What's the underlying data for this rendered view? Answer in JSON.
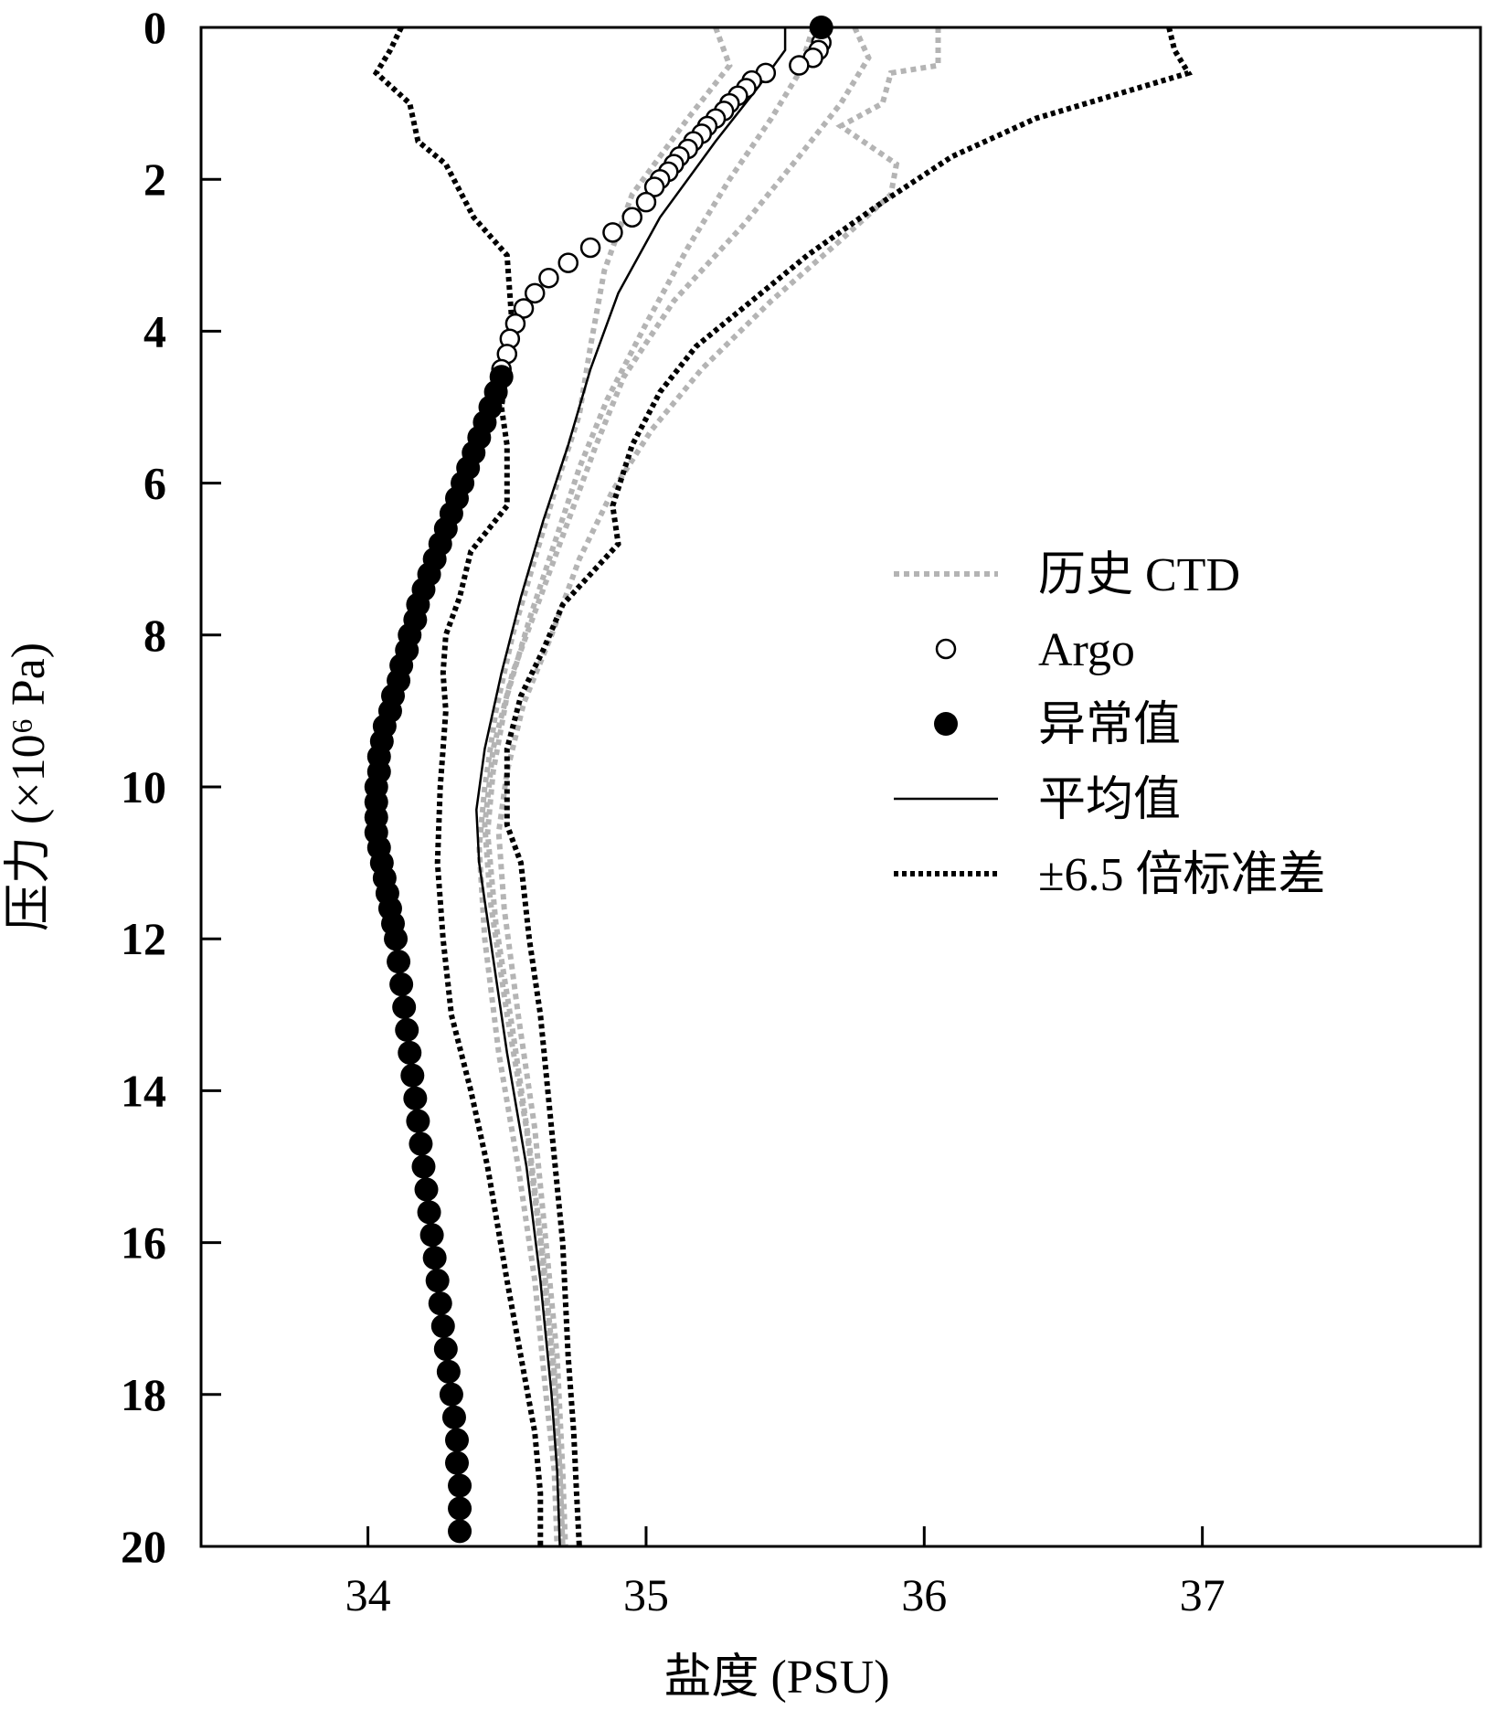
{
  "chart_data": {
    "type": "scatter",
    "xlabel": "盐度 (PSU)",
    "ylabel": "压力 (×10⁶ Pa)",
    "xlim": [
      33.4,
      38.0
    ],
    "ylim": [
      20,
      0
    ],
    "y_inverted": true,
    "x_ticks": [
      34,
      35,
      36,
      37
    ],
    "y_ticks": [
      0,
      2,
      4,
      6,
      8,
      10,
      12,
      14,
      16,
      18,
      20
    ],
    "x_tick_labels": [
      "34",
      "35",
      "36",
      "37"
    ],
    "y_tick_labels": [
      "0",
      "2",
      "4",
      "6",
      "8",
      "10",
      "12",
      "14",
      "16",
      "18",
      "20"
    ],
    "grid": false,
    "legend_position": "right",
    "legend": [
      {
        "label": "历史 CTD",
        "style": "gray-dotted-line"
      },
      {
        "label": "Argo",
        "style": "open-circle"
      },
      {
        "label": "异常值",
        "style": "filled-circle"
      },
      {
        "label": "平均值",
        "style": "solid-line"
      },
      {
        "label": "±6.5 倍标准差",
        "style": "black-dotted-line"
      }
    ],
    "colors": {
      "ctd": "#b4b4b4",
      "black": "#000000"
    },
    "series": [
      {
        "name": "平均值",
        "style": "solid",
        "points": [
          [
            35.5,
            0.0
          ],
          [
            35.5,
            0.3
          ],
          [
            35.4,
            0.8
          ],
          [
            35.25,
            1.5
          ],
          [
            35.05,
            2.5
          ],
          [
            34.9,
            3.5
          ],
          [
            34.8,
            4.5
          ],
          [
            34.72,
            5.5
          ],
          [
            34.63,
            6.5
          ],
          [
            34.55,
            7.5
          ],
          [
            34.48,
            8.5
          ],
          [
            34.42,
            9.5
          ],
          [
            34.39,
            10.3
          ],
          [
            34.4,
            11.0
          ],
          [
            34.44,
            12.0
          ],
          [
            34.5,
            13.5
          ],
          [
            34.57,
            15.0
          ],
          [
            34.62,
            16.5
          ],
          [
            34.66,
            18.0
          ],
          [
            34.68,
            19.0
          ],
          [
            34.69,
            20.0
          ]
        ]
      },
      {
        "name": "±6.5 倍标准差",
        "style": "dotted-lower",
        "points": [
          [
            34.12,
            0.0
          ],
          [
            34.08,
            0.3
          ],
          [
            34.03,
            0.6
          ],
          [
            34.15,
            1.0
          ],
          [
            34.18,
            1.5
          ],
          [
            34.28,
            1.8
          ],
          [
            34.38,
            2.5
          ],
          [
            34.5,
            3.0
          ],
          [
            34.51,
            3.5
          ],
          [
            34.52,
            4.0
          ],
          [
            34.5,
            4.5
          ],
          [
            34.48,
            5.0
          ],
          [
            34.5,
            5.5
          ],
          [
            34.5,
            6.3
          ],
          [
            34.37,
            6.9
          ],
          [
            34.33,
            7.5
          ],
          [
            34.28,
            8.0
          ],
          [
            34.27,
            8.5
          ],
          [
            34.28,
            9.0
          ],
          [
            34.27,
            9.5
          ],
          [
            34.26,
            10.0
          ],
          [
            34.25,
            11.0
          ],
          [
            34.27,
            12.0
          ],
          [
            34.3,
            13.0
          ],
          [
            34.37,
            14.0
          ],
          [
            34.43,
            15.0
          ],
          [
            34.5,
            16.5
          ],
          [
            34.55,
            17.5
          ],
          [
            34.6,
            18.5
          ],
          [
            34.62,
            19.3
          ],
          [
            34.62,
            20.0
          ]
        ]
      },
      {
        "name": "±6.5 倍标准差",
        "style": "dotted-upper",
        "points": [
          [
            36.88,
            0.0
          ],
          [
            36.9,
            0.3
          ],
          [
            36.95,
            0.6
          ],
          [
            36.4,
            1.2
          ],
          [
            36.1,
            1.7
          ],
          [
            35.85,
            2.3
          ],
          [
            35.58,
            3.0
          ],
          [
            35.38,
            3.6
          ],
          [
            35.18,
            4.2
          ],
          [
            35.05,
            4.8
          ],
          [
            34.95,
            5.5
          ],
          [
            34.88,
            6.3
          ],
          [
            34.9,
            6.8
          ],
          [
            34.7,
            7.6
          ],
          [
            34.63,
            8.2
          ],
          [
            34.55,
            8.8
          ],
          [
            34.5,
            9.5
          ],
          [
            34.5,
            10.5
          ],
          [
            34.55,
            11.0
          ],
          [
            34.58,
            12.0
          ],
          [
            34.62,
            13.0
          ],
          [
            34.66,
            14.5
          ],
          [
            34.7,
            16.0
          ],
          [
            34.72,
            17.5
          ],
          [
            34.74,
            18.5
          ],
          [
            34.75,
            19.3
          ],
          [
            34.76,
            20.0
          ]
        ]
      },
      {
        "name": "历史 CTD",
        "style": "gray-dotted-1",
        "points": [
          [
            35.75,
            0.0
          ],
          [
            35.8,
            0.4
          ],
          [
            35.7,
            1.0
          ],
          [
            35.55,
            1.7
          ],
          [
            35.35,
            2.6
          ],
          [
            35.1,
            3.6
          ],
          [
            34.92,
            4.6
          ],
          [
            34.82,
            5.5
          ],
          [
            34.72,
            6.5
          ],
          [
            34.62,
            7.5
          ],
          [
            34.52,
            8.5
          ],
          [
            34.45,
            9.5
          ],
          [
            34.42,
            10.5
          ],
          [
            34.44,
            11.5
          ],
          [
            34.5,
            13.0
          ],
          [
            34.57,
            14.5
          ],
          [
            34.62,
            16.0
          ],
          [
            34.66,
            17.5
          ],
          [
            34.69,
            19.0
          ],
          [
            34.7,
            20.0
          ]
        ]
      },
      {
        "name": "历史 CTD",
        "style": "gray-dotted-2",
        "points": [
          [
            36.05,
            0.0
          ],
          [
            36.05,
            0.5
          ],
          [
            35.88,
            0.6
          ],
          [
            35.85,
            1.0
          ],
          [
            35.7,
            1.3
          ],
          [
            35.9,
            1.8
          ],
          [
            35.88,
            2.2
          ],
          [
            35.7,
            2.8
          ],
          [
            35.45,
            3.6
          ],
          [
            35.2,
            4.5
          ],
          [
            35.02,
            5.3
          ],
          [
            34.88,
            6.1
          ],
          [
            34.76,
            7.0
          ],
          [
            34.66,
            8.0
          ],
          [
            34.56,
            8.9
          ],
          [
            34.5,
            9.8
          ],
          [
            34.47,
            10.6
          ],
          [
            34.49,
            11.6
          ],
          [
            34.54,
            13.0
          ],
          [
            34.6,
            14.5
          ],
          [
            34.64,
            16.0
          ],
          [
            34.68,
            17.5
          ],
          [
            34.7,
            19.0
          ],
          [
            34.71,
            20.0
          ]
        ]
      },
      {
        "name": "历史 CTD",
        "style": "gray-dotted-3",
        "points": [
          [
            35.25,
            0.0
          ],
          [
            35.3,
            0.5
          ],
          [
            35.15,
            1.2
          ],
          [
            34.95,
            2.2
          ],
          [
            34.85,
            3.2
          ],
          [
            34.8,
            4.2
          ],
          [
            34.76,
            5.1
          ],
          [
            34.68,
            6.0
          ],
          [
            34.6,
            7.0
          ],
          [
            34.52,
            8.0
          ],
          [
            34.46,
            9.0
          ],
          [
            34.42,
            10.0
          ],
          [
            34.4,
            10.8
          ],
          [
            34.42,
            12.0
          ],
          [
            34.47,
            13.5
          ],
          [
            34.54,
            15.0
          ],
          [
            34.6,
            16.5
          ],
          [
            34.64,
            18.0
          ],
          [
            34.67,
            19.0
          ],
          [
            34.68,
            20.0
          ]
        ]
      },
      {
        "name": "历史 CTD",
        "style": "gray-dotted-4",
        "points": [
          [
            35.6,
            0.0
          ],
          [
            35.55,
            0.6
          ],
          [
            35.45,
            1.2
          ],
          [
            35.3,
            2.0
          ],
          [
            35.15,
            2.9
          ],
          [
            35.0,
            3.9
          ],
          [
            34.86,
            4.9
          ],
          [
            34.76,
            5.8
          ],
          [
            34.67,
            6.8
          ],
          [
            34.58,
            7.8
          ],
          [
            34.5,
            8.8
          ],
          [
            34.45,
            9.8
          ],
          [
            34.43,
            10.6
          ],
          [
            34.46,
            11.8
          ],
          [
            34.52,
            13.2
          ],
          [
            34.58,
            14.7
          ],
          [
            34.63,
            16.2
          ],
          [
            34.67,
            17.7
          ],
          [
            34.69,
            19.0
          ],
          [
            34.7,
            20.0
          ]
        ]
      },
      {
        "name": "Argo",
        "style": "open-circle",
        "points": [
          [
            35.63,
            0.2
          ],
          [
            35.62,
            0.3
          ],
          [
            35.6,
            0.4
          ],
          [
            35.55,
            0.5
          ],
          [
            35.43,
            0.6
          ],
          [
            35.38,
            0.7
          ],
          [
            35.36,
            0.8
          ],
          [
            35.33,
            0.9
          ],
          [
            35.3,
            1.0
          ],
          [
            35.28,
            1.1
          ],
          [
            35.25,
            1.2
          ],
          [
            35.22,
            1.3
          ],
          [
            35.2,
            1.4
          ],
          [
            35.17,
            1.5
          ],
          [
            35.15,
            1.6
          ],
          [
            35.12,
            1.7
          ],
          [
            35.1,
            1.8
          ],
          [
            35.08,
            1.9
          ],
          [
            35.05,
            2.0
          ],
          [
            35.03,
            2.1
          ],
          [
            35.0,
            2.3
          ],
          [
            34.95,
            2.5
          ],
          [
            34.88,
            2.7
          ],
          [
            34.8,
            2.9
          ],
          [
            34.72,
            3.1
          ],
          [
            34.65,
            3.3
          ],
          [
            34.6,
            3.5
          ],
          [
            34.56,
            3.7
          ],
          [
            34.53,
            3.9
          ],
          [
            34.51,
            4.1
          ],
          [
            34.5,
            4.3
          ],
          [
            34.48,
            4.5
          ]
        ]
      },
      {
        "name": "异常值",
        "style": "filled-circle",
        "points": [
          [
            35.63,
            0.0
          ],
          [
            34.48,
            4.6
          ],
          [
            34.46,
            4.8
          ],
          [
            34.44,
            5.0
          ],
          [
            34.42,
            5.2
          ],
          [
            34.4,
            5.4
          ],
          [
            34.38,
            5.6
          ],
          [
            34.36,
            5.8
          ],
          [
            34.34,
            6.0
          ],
          [
            34.32,
            6.2
          ],
          [
            34.3,
            6.4
          ],
          [
            34.28,
            6.6
          ],
          [
            34.26,
            6.8
          ],
          [
            34.24,
            7.0
          ],
          [
            34.22,
            7.2
          ],
          [
            34.2,
            7.4
          ],
          [
            34.18,
            7.6
          ],
          [
            34.17,
            7.8
          ],
          [
            34.15,
            8.0
          ],
          [
            34.14,
            8.2
          ],
          [
            34.12,
            8.4
          ],
          [
            34.11,
            8.6
          ],
          [
            34.09,
            8.8
          ],
          [
            34.08,
            9.0
          ],
          [
            34.06,
            9.2
          ],
          [
            34.05,
            9.4
          ],
          [
            34.04,
            9.6
          ],
          [
            34.04,
            9.8
          ],
          [
            34.03,
            10.0
          ],
          [
            34.03,
            10.2
          ],
          [
            34.03,
            10.4
          ],
          [
            34.03,
            10.6
          ],
          [
            34.04,
            10.8
          ],
          [
            34.05,
            11.0
          ],
          [
            34.06,
            11.2
          ],
          [
            34.07,
            11.4
          ],
          [
            34.08,
            11.6
          ],
          [
            34.09,
            11.8
          ],
          [
            34.1,
            12.0
          ],
          [
            34.11,
            12.3
          ],
          [
            34.12,
            12.6
          ],
          [
            34.13,
            12.9
          ],
          [
            34.14,
            13.2
          ],
          [
            34.15,
            13.5
          ],
          [
            34.16,
            13.8
          ],
          [
            34.17,
            14.1
          ],
          [
            34.18,
            14.4
          ],
          [
            34.19,
            14.7
          ],
          [
            34.2,
            15.0
          ],
          [
            34.21,
            15.3
          ],
          [
            34.22,
            15.6
          ],
          [
            34.23,
            15.9
          ],
          [
            34.24,
            16.2
          ],
          [
            34.25,
            16.5
          ],
          [
            34.26,
            16.8
          ],
          [
            34.27,
            17.1
          ],
          [
            34.28,
            17.4
          ],
          [
            34.29,
            17.7
          ],
          [
            34.3,
            18.0
          ],
          [
            34.31,
            18.3
          ],
          [
            34.32,
            18.6
          ],
          [
            34.32,
            18.9
          ],
          [
            34.33,
            19.2
          ],
          [
            34.33,
            19.5
          ],
          [
            34.33,
            19.8
          ]
        ]
      }
    ]
  }
}
